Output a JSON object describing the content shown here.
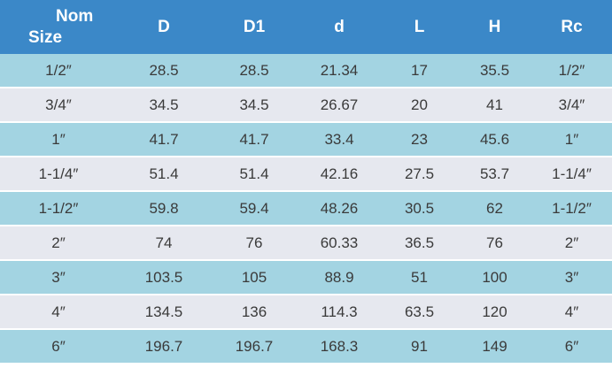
{
  "table": {
    "columns": [
      "Nom Size",
      "D",
      "D1",
      "d",
      "L",
      "H",
      "Rc"
    ],
    "rows": [
      [
        "1/2″",
        "28.5",
        "28.5",
        "21.34",
        "17",
        "35.5",
        "1/2″"
      ],
      [
        "3/4″",
        "34.5",
        "34.5",
        "26.67",
        "20",
        "41",
        "3/4″"
      ],
      [
        "1″",
        "41.7",
        "41.7",
        "33.4",
        "23",
        "45.6",
        "1″"
      ],
      [
        "1-1/4″",
        "51.4",
        "51.4",
        "42.16",
        "27.5",
        "53.7",
        "1-1/4″"
      ],
      [
        "1-1/2″",
        "59.8",
        "59.4",
        "48.26",
        "30.5",
        "62",
        "1-1/2″"
      ],
      [
        "2″",
        "74",
        "76",
        "60.33",
        "36.5",
        "76",
        "2″"
      ],
      [
        "3″",
        "103.5",
        "105",
        "88.9",
        "51",
        "100",
        "3″"
      ],
      [
        "4″",
        "134.5",
        "136",
        "114.3",
        "63.5",
        "120",
        "4″"
      ],
      [
        "6″",
        "196.7",
        "196.7",
        "168.3",
        "91",
        "149",
        "6″"
      ]
    ]
  },
  "colors": {
    "header_bg": "#3b88c8",
    "header_text": "#ffffff",
    "row_blue": "#a3d4e2",
    "row_gray": "#e6e8ef",
    "separator": "#ffffff",
    "cell_text": "#3a3a3a"
  }
}
